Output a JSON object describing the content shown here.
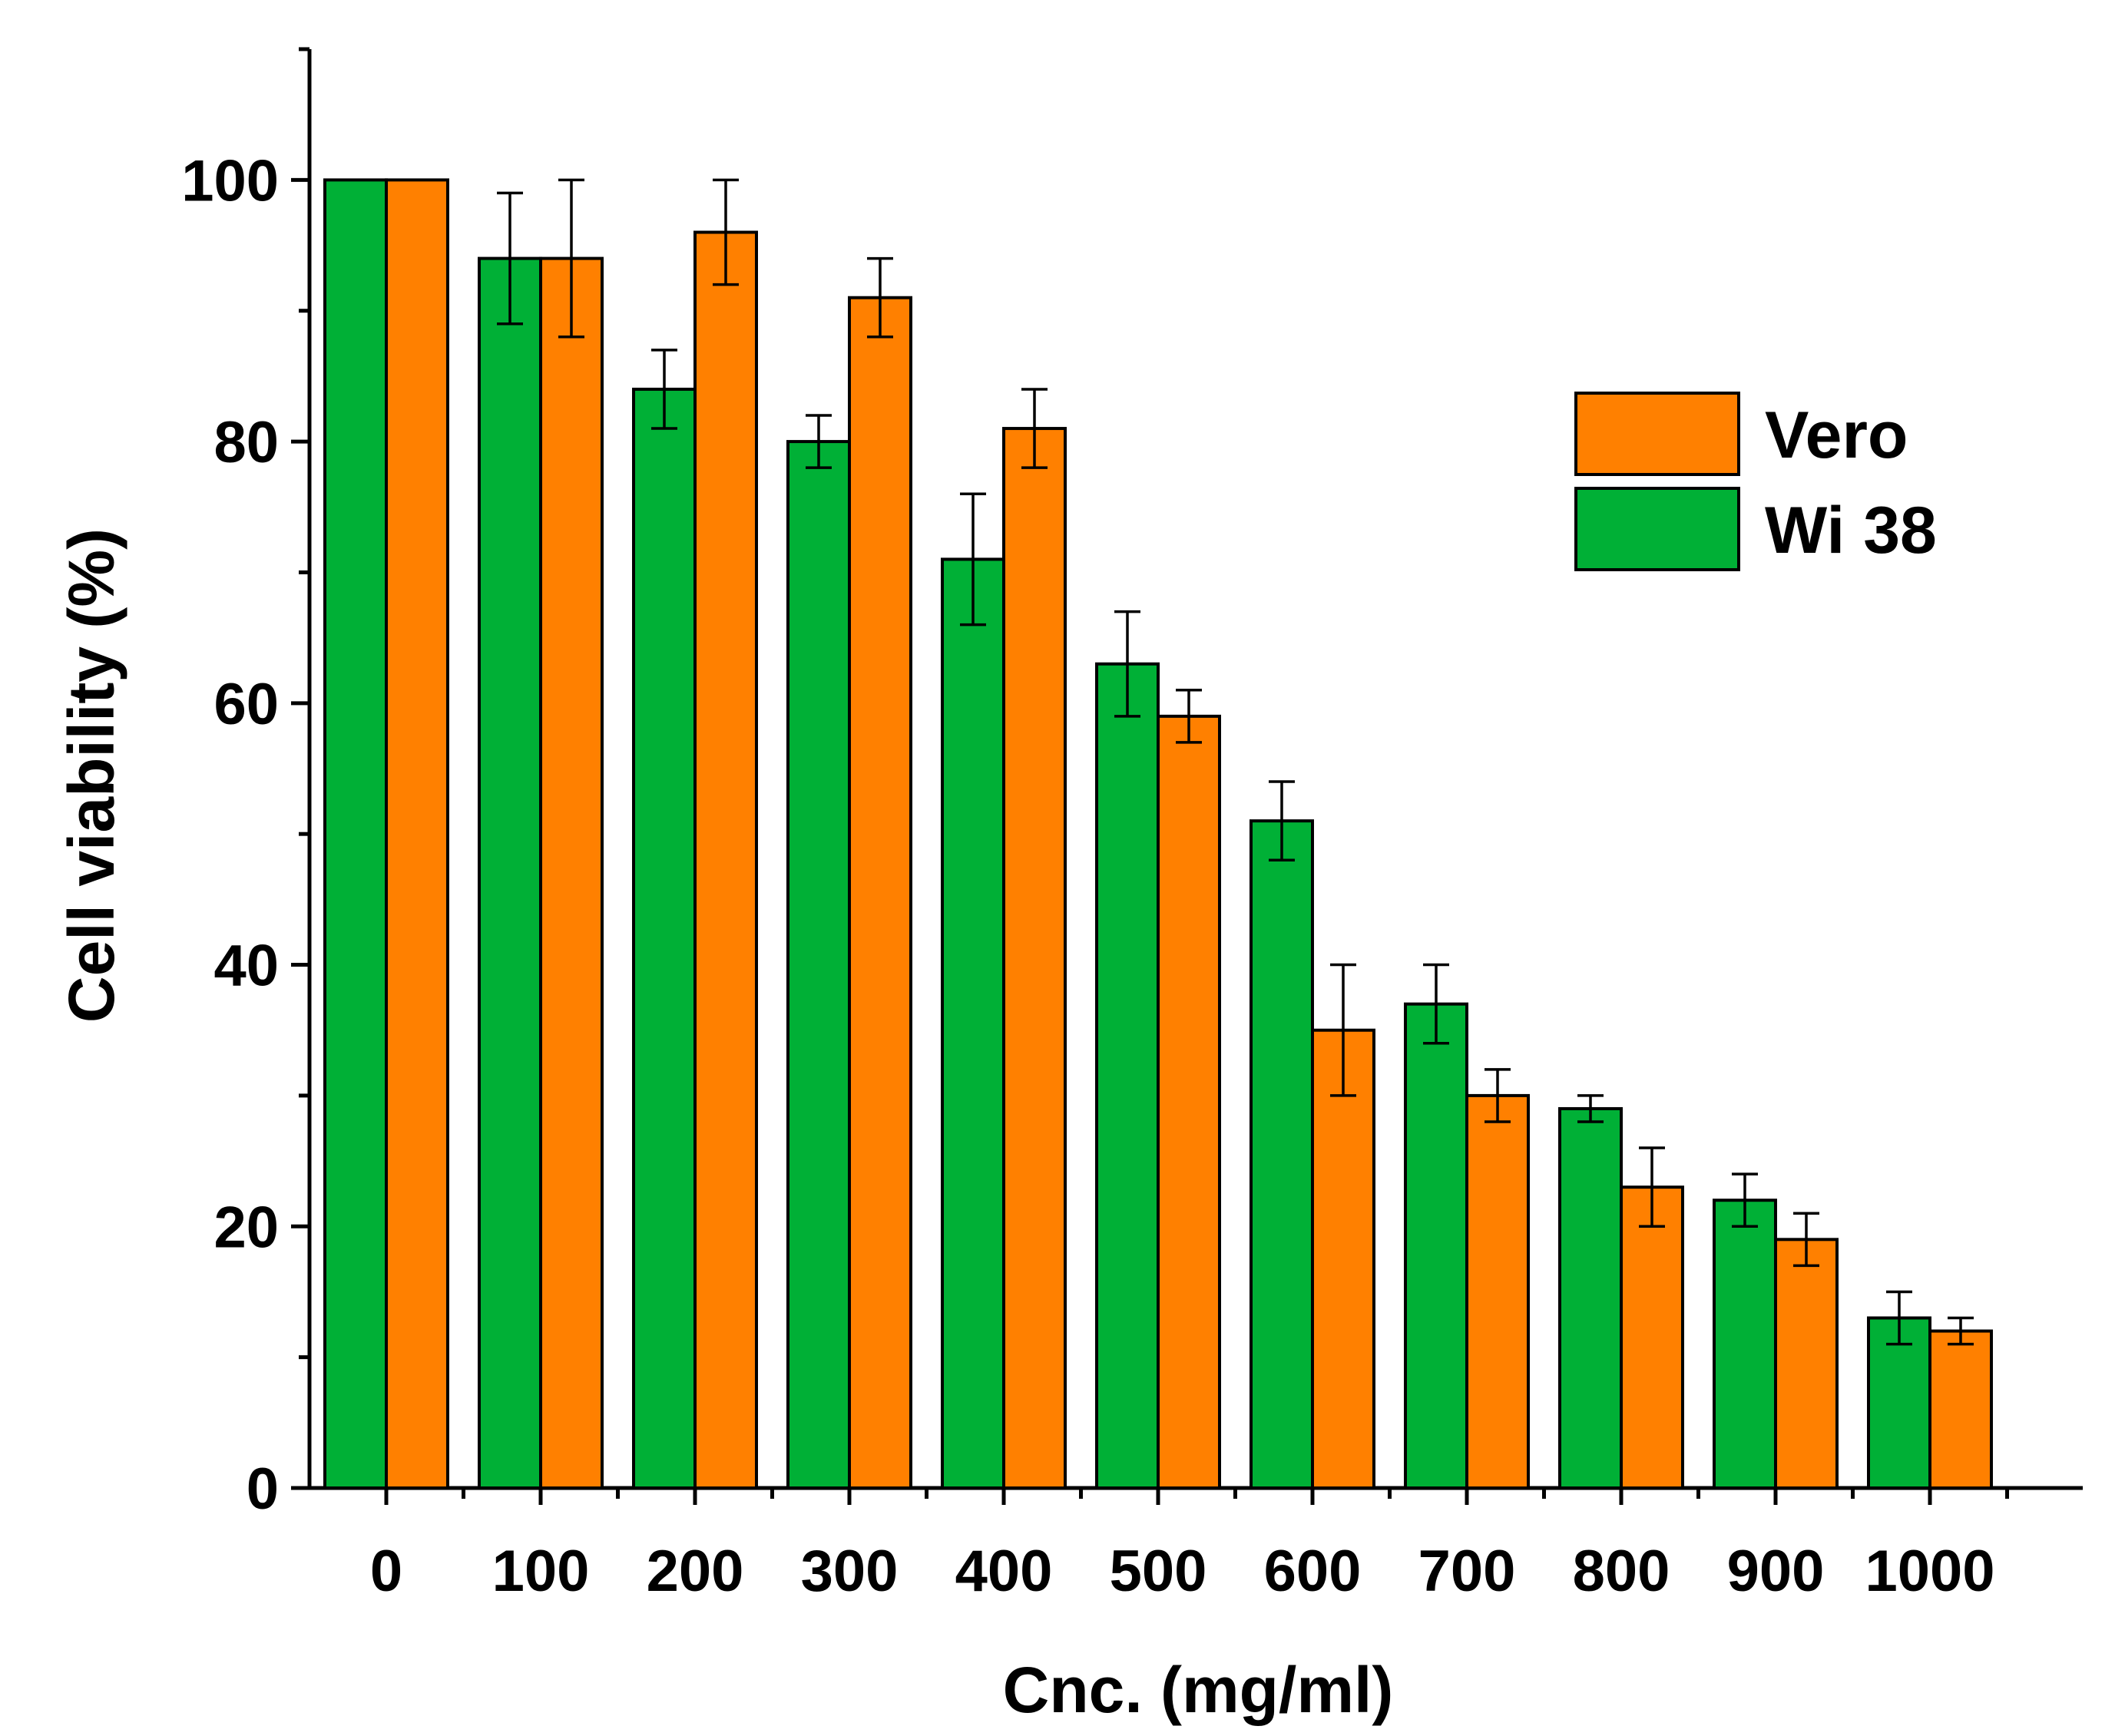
{
  "chart_data": {
    "type": "bar",
    "title": "",
    "xlabel": "Cnc. (mg/ml)",
    "ylabel": "Cell viability (%)",
    "categories": [
      "0",
      "100",
      "200",
      "300",
      "400",
      "500",
      "600",
      "700",
      "800",
      "900",
      "1000"
    ],
    "ylim": [
      0,
      110
    ],
    "yticks": [
      0,
      20,
      40,
      60,
      80,
      100
    ],
    "y_minor_step": 10,
    "grid": false,
    "legend_position": "top-right",
    "series": [
      {
        "name": "Wi 38",
        "color": "#00b036",
        "values": [
          100,
          94,
          84,
          80,
          71,
          63,
          51,
          37,
          29,
          22,
          13
        ],
        "errors": [
          0,
          5,
          3,
          2,
          5,
          4,
          3,
          3,
          1,
          2,
          2
        ]
      },
      {
        "name": "Vero",
        "color": "#ff8000",
        "values": [
          100,
          94,
          96,
          91,
          81,
          59,
          35,
          30,
          23,
          19,
          12
        ],
        "errors": [
          0,
          6,
          4,
          3,
          3,
          2,
          5,
          2,
          3,
          2,
          1
        ]
      }
    ],
    "legend_order": [
      "Vero",
      "Wi 38"
    ]
  }
}
